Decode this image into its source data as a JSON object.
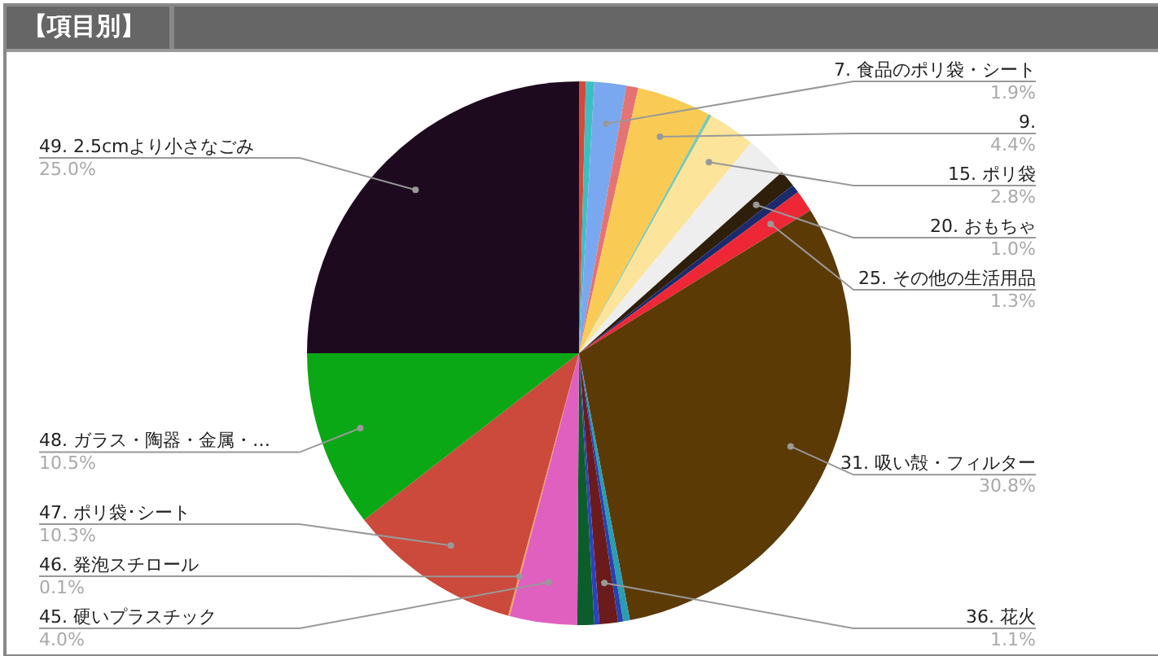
{
  "chart_data": {
    "type": "pie",
    "title": "【項目別】",
    "categories": [
      null,
      null,
      "7. 食品のポリ袋・シート",
      null,
      "9.",
      null,
      "15. ポリ袋",
      null,
      "20. おもちゃ",
      null,
      "25. その他の生活用品",
      "31. 吸い殻・フィルター",
      null,
      null,
      "36. 花火",
      null,
      null,
      "45. 硬いプラスチック",
      "46. 発泡スチロール",
      "47. ポリ袋･シート",
      "48. ガラス・陶器・金属・…",
      "49. 2.5cmより小さなごみ"
    ],
    "values": [
      0.4,
      0.5,
      1.9,
      0.7,
      4.4,
      0.2,
      2.8,
      2.5,
      1.0,
      0.5,
      1.3,
      30.8,
      0.4,
      0.3,
      1.1,
      0.3,
      1.0,
      4.0,
      0.1,
      10.3,
      10.5,
      25.0
    ],
    "value_labels": [
      null,
      null,
      "1.9%",
      null,
      "4.4%",
      null,
      "2.8%",
      null,
      "1.0%",
      null,
      "1.3%",
      "30.8%",
      null,
      null,
      "1.1%",
      null,
      null,
      "4.0%",
      "0.1%",
      "10.3%",
      "10.5%",
      "25.0%"
    ],
    "colors": [
      "#d44a3a",
      "#3cbfc0",
      "#7aa8f0",
      "#e57373",
      "#f9cb55",
      "#7ec8b0",
      "#fce49a",
      "#eeeeee",
      "#2e1f0a",
      "#1a2a6c",
      "#ee2737",
      "#5c3a06",
      "#2a9db0",
      "#2541b2",
      "#6b1b1b",
      "#2e3fc4",
      "#0b5e2a",
      "#e060c0",
      "#f0a060",
      "#cc4a3c",
      "#0aa814",
      "#1e0a1e"
    ],
    "legend": false
  }
}
